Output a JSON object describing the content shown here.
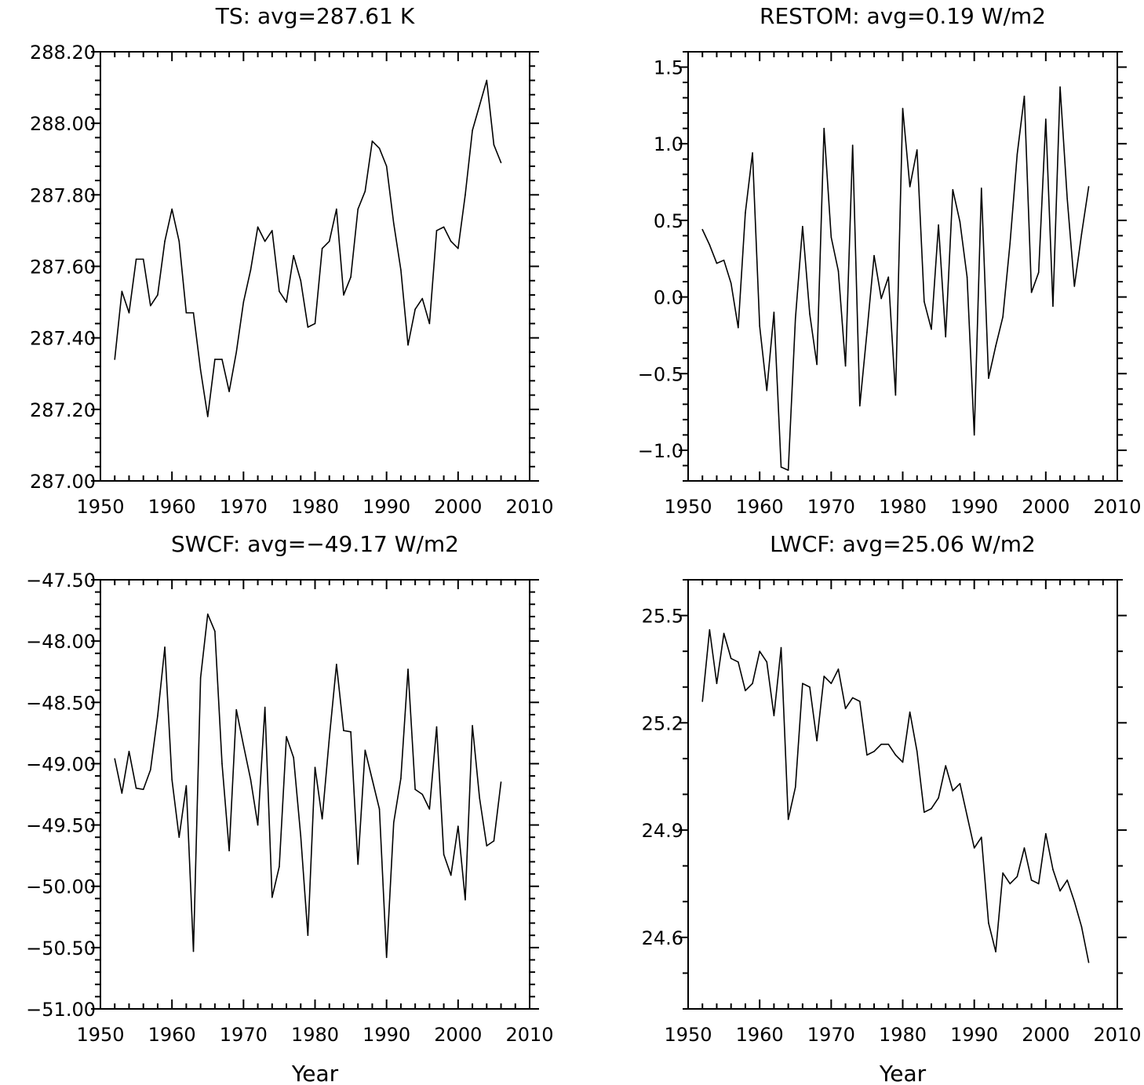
{
  "chart_data": [
    {
      "type": "line",
      "title": "TS: avg=287.61 K",
      "xlabel": "",
      "ylabel": "",
      "xlim": [
        1950,
        2010
      ],
      "ylim": [
        287.0,
        288.2
      ],
      "xticks": [
        1950,
        1960,
        1970,
        1980,
        1990,
        2000,
        2010
      ],
      "yticks": [
        287.0,
        287.2,
        287.4,
        287.6,
        287.8,
        288.0,
        288.2
      ],
      "ytick_labels": [
        "287.00",
        "287.20",
        "287.40",
        "287.60",
        "287.80",
        "288.00",
        "288.20"
      ],
      "x_start": 1952,
      "values": [
        287.34,
        287.53,
        287.47,
        287.62,
        287.62,
        287.49,
        287.52,
        287.67,
        287.76,
        287.67,
        287.47,
        287.47,
        287.31,
        287.18,
        287.34,
        287.34,
        287.25,
        287.36,
        287.5,
        287.59,
        287.71,
        287.67,
        287.7,
        287.53,
        287.5,
        287.63,
        287.56,
        287.43,
        287.44,
        287.65,
        287.67,
        287.76,
        287.52,
        287.57,
        287.76,
        287.81,
        287.95,
        287.93,
        287.88,
        287.72,
        287.59,
        287.38,
        287.48,
        287.51,
        287.44,
        287.7,
        287.71,
        287.67,
        287.65,
        287.8,
        287.98,
        288.05,
        288.12,
        287.94,
        287.89
      ]
    },
    {
      "type": "line",
      "title": "RESTOM: avg=0.19 W/m2",
      "xlabel": "",
      "ylabel": "",
      "xlim": [
        1950,
        2010
      ],
      "ylim": [
        -1.2,
        1.6
      ],
      "xticks": [
        1950,
        1960,
        1970,
        1980,
        1990,
        2000,
        2010
      ],
      "yticks": [
        -1.0,
        -0.5,
        0.0,
        0.5,
        1.0,
        1.5
      ],
      "ytick_labels": [
        "−1.0",
        "−0.5",
        "0.0",
        "0.5",
        "1.0",
        "1.5"
      ],
      "x_start": 1952,
      "values": [
        0.44,
        0.34,
        0.22,
        0.24,
        0.09,
        -0.2,
        0.55,
        0.94,
        -0.19,
        -0.61,
        -0.1,
        -1.11,
        -1.13,
        -0.14,
        0.46,
        -0.11,
        -0.44,
        1.1,
        0.39,
        0.17,
        -0.45,
        0.99,
        -0.71,
        -0.23,
        0.27,
        -0.01,
        0.13,
        -0.64,
        1.23,
        0.72,
        0.96,
        -0.03,
        -0.21,
        0.47,
        -0.26,
        0.7,
        0.49,
        0.13,
        -0.9,
        0.71,
        -0.53,
        -0.32,
        -0.13,
        0.35,
        0.93,
        1.31,
        0.03,
        0.16,
        1.16,
        -0.06,
        1.37,
        0.64,
        0.07,
        0.41,
        0.72
      ]
    },
    {
      "type": "line",
      "title": "SWCF: avg=−49.17 W/m2",
      "xlabel": "Year",
      "ylabel": "",
      "xlim": [
        1950,
        2010
      ],
      "ylim": [
        -51.0,
        -47.5
      ],
      "xticks": [
        1950,
        1960,
        1970,
        1980,
        1990,
        2000,
        2010
      ],
      "yticks": [
        -51.0,
        -50.5,
        -50.0,
        -49.5,
        -49.0,
        -48.5,
        -48.0,
        -47.5
      ],
      "ytick_labels": [
        "−51.00",
        "−50.50",
        "−50.00",
        "−49.50",
        "−49.00",
        "−48.50",
        "−48.00",
        "−47.50"
      ],
      "x_start": 1952,
      "values": [
        -48.96,
        -49.24,
        -48.9,
        -49.2,
        -49.21,
        -49.05,
        -48.61,
        -48.05,
        -49.13,
        -49.6,
        -49.18,
        -50.53,
        -48.3,
        -47.78,
        -47.92,
        -49.0,
        -49.71,
        -48.56,
        -48.85,
        -49.13,
        -49.5,
        -48.54,
        -50.09,
        -49.84,
        -48.78,
        -48.95,
        -49.59,
        -50.4,
        -49.03,
        -49.45,
        -48.79,
        -48.19,
        -48.73,
        -48.74,
        -49.82,
        -48.89,
        -49.13,
        -49.37,
        -50.58,
        -49.48,
        -49.12,
        -48.23,
        -49.21,
        -49.25,
        -49.37,
        -48.7,
        -49.74,
        -49.91,
        -49.51,
        -50.11,
        -48.69,
        -49.28,
        -49.67,
        -49.63,
        -49.15
      ]
    },
    {
      "type": "line",
      "title": "LWCF: avg=25.06 W/m2",
      "xlabel": "Year",
      "ylabel": "",
      "xlim": [
        1950,
        2010
      ],
      "ylim": [
        24.4,
        25.6
      ],
      "xticks": [
        1950,
        1960,
        1970,
        1980,
        1990,
        2000,
        2010
      ],
      "yticks": [
        24.6,
        24.9,
        25.2,
        25.5
      ],
      "ytick_labels": [
        "24.6",
        "24.9",
        "25.2",
        "25.5"
      ],
      "x_start": 1952,
      "values": [
        25.26,
        25.46,
        25.31,
        25.45,
        25.38,
        25.37,
        25.29,
        25.31,
        25.4,
        25.37,
        25.22,
        25.41,
        24.93,
        25.02,
        25.31,
        25.3,
        25.15,
        25.33,
        25.31,
        25.35,
        25.24,
        25.27,
        25.26,
        25.11,
        25.12,
        25.14,
        25.14,
        25.11,
        25.09,
        25.23,
        25.12,
        24.95,
        24.96,
        24.99,
        25.08,
        25.01,
        25.03,
        24.94,
        24.85,
        24.88,
        24.64,
        24.56,
        24.78,
        24.75,
        24.77,
        24.85,
        24.76,
        24.75,
        24.89,
        24.79,
        24.73,
        24.76,
        24.7,
        24.63,
        24.53
      ]
    }
  ]
}
